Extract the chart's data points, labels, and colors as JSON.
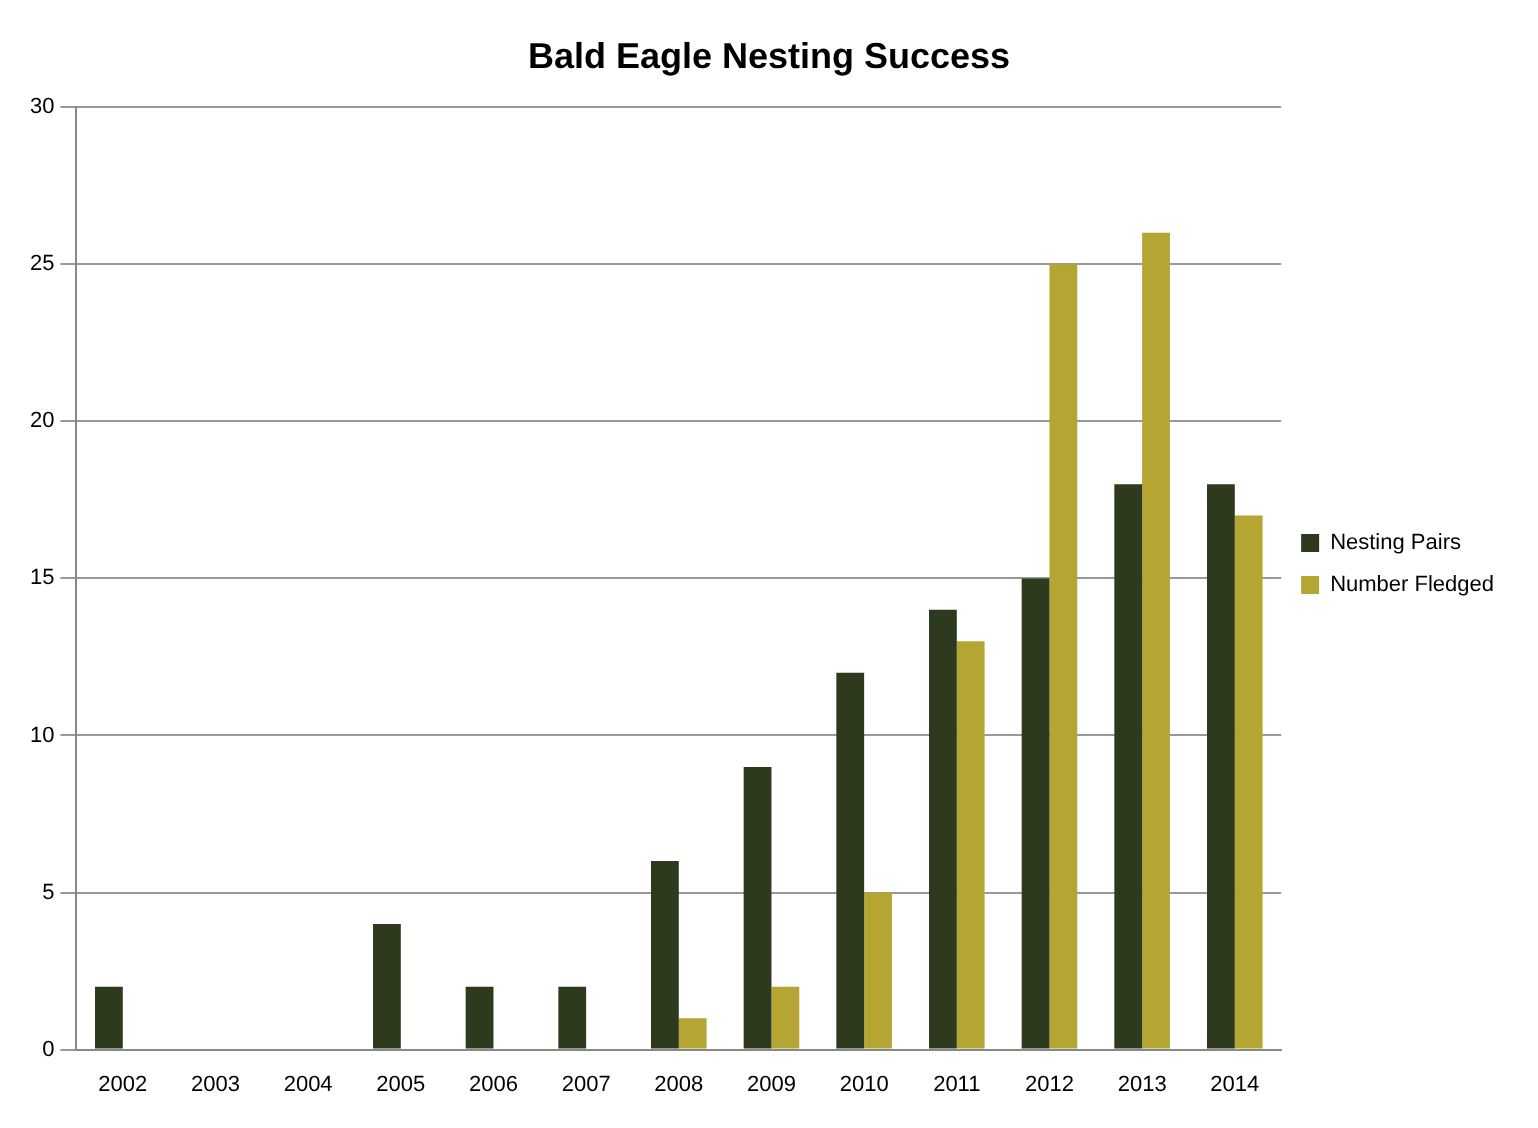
{
  "chart_data": {
    "type": "bar",
    "title": "Bald Eagle Nesting Success",
    "categories": [
      "2002",
      "2003",
      "2004",
      "2005",
      "2006",
      "2007",
      "2008",
      "2009",
      "2010",
      "2011",
      "2012",
      "2013",
      "2014"
    ],
    "series": [
      {
        "name": "Nesting Pairs",
        "color": "#2d3a1e",
        "values": [
          2,
          0,
          0,
          4,
          2,
          2,
          6,
          9,
          12,
          14,
          15,
          18,
          18
        ]
      },
      {
        "name": "Number Fledged",
        "color": "#b5a532",
        "values": [
          0,
          0,
          0,
          0,
          0,
          0,
          1,
          2,
          5,
          13,
          25,
          26,
          17
        ]
      }
    ],
    "ylim": [
      0,
      30
    ],
    "yticks": [
      0,
      5,
      10,
      15,
      20,
      25,
      30
    ],
    "grid": "y",
    "legend": "right"
  }
}
